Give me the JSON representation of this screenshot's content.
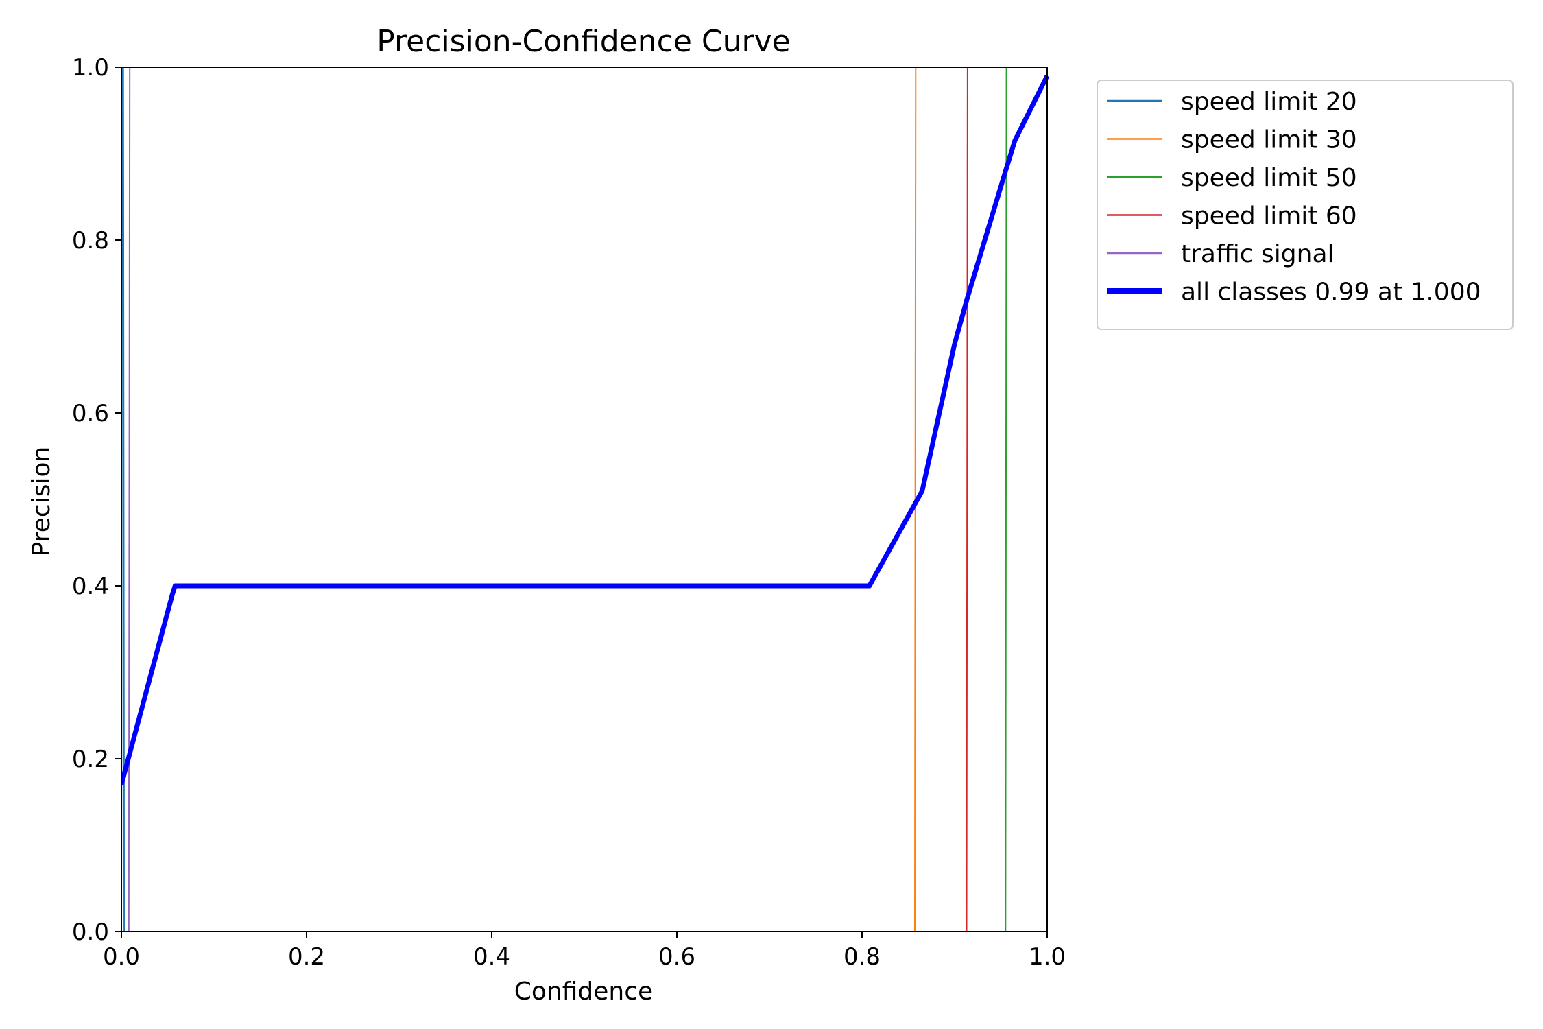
{
  "chart_data": {
    "type": "line",
    "title": "Precision-Confidence Curve",
    "xlabel": "Confidence",
    "ylabel": "Precision",
    "xlim": [
      0,
      1
    ],
    "ylim": [
      0,
      1
    ],
    "xticks": [
      "0.0",
      "0.2",
      "0.4",
      "0.6",
      "0.8",
      "1.0"
    ],
    "yticks": [
      "0.0",
      "0.2",
      "0.4",
      "0.6",
      "0.8",
      "1.0"
    ],
    "grid": false,
    "legend_position": "outside-top-right",
    "series": [
      {
        "name": "speed limit 20",
        "color": "#1f77b4",
        "linewidth": 2,
        "x": [
          0.0,
          0.001,
          0.002,
          0.003,
          1.0
        ],
        "y": [
          0.0,
          1.0,
          1.0,
          0.0,
          0.0
        ]
      },
      {
        "name": "speed limit 30",
        "color": "#ff7f0e",
        "linewidth": 2,
        "x": [
          0.0,
          0.857,
          0.858,
          1.0
        ],
        "y": [
          0.0,
          0.0,
          1.0,
          1.0
        ]
      },
      {
        "name": "speed limit 50",
        "color": "#2ca02c",
        "linewidth": 2,
        "x": [
          0.0,
          0.955,
          0.956,
          1.0
        ],
        "y": [
          0.0,
          0.0,
          1.0,
          1.0
        ]
      },
      {
        "name": "speed limit 60",
        "color": "#d62728",
        "linewidth": 2,
        "x": [
          0.0,
          0.913,
          0.914,
          1.0
        ],
        "y": [
          0.0,
          0.0,
          1.0,
          1.0
        ]
      },
      {
        "name": "traffic signal",
        "color": "#9467bd",
        "linewidth": 2,
        "x": [
          0.0,
          0.008,
          0.009,
          1.0
        ],
        "y": [
          0.0,
          0.0,
          1.0,
          1.0
        ]
      },
      {
        "name": "all classes 0.99 at 1.000",
        "color": "#0000ff",
        "linewidth": 7,
        "x": [
          0.0,
          0.055,
          0.058,
          0.808,
          0.865,
          0.9,
          0.913,
          0.955,
          0.965,
          1.0
        ],
        "y": [
          0.17,
          0.39,
          0.4,
          0.4,
          0.51,
          0.68,
          0.73,
          0.88,
          0.915,
          0.99
        ]
      }
    ]
  }
}
